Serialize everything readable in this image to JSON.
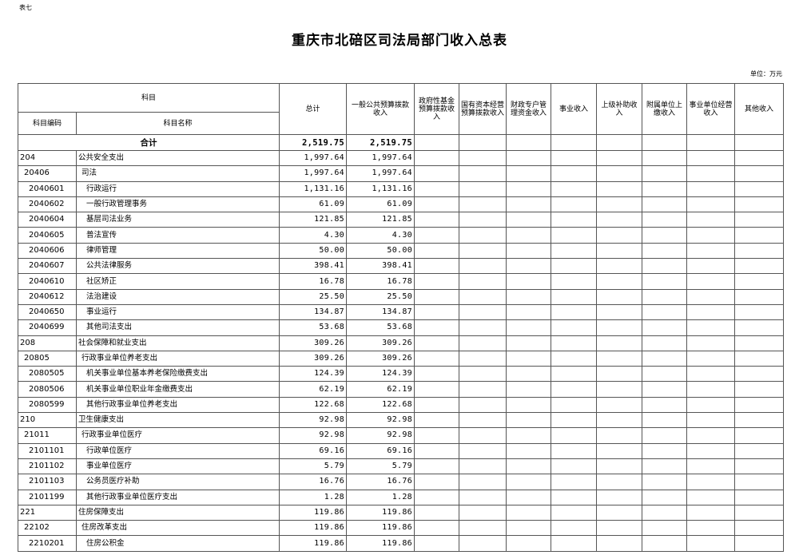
{
  "doc": {
    "tag": "表七",
    "title": "重庆市北碚区司法局部门收入总表",
    "unit": "单位：万元"
  },
  "header": {
    "subject": "科目",
    "code": "科目编码",
    "name": "科目名称",
    "columns": [
      "总计",
      "一般公共预算拨款收入",
      "政府性基金预算拨款收入",
      "国有资本经营预算拨款收入",
      "财政专户管理资金收入",
      "事业收入",
      "上级补助收入",
      "附属单位上缴收入",
      "事业单位经营收入",
      "其他收入"
    ]
  },
  "total": {
    "label": "合计",
    "total": "2,519.75",
    "general": "2,519.75"
  },
  "rows": [
    {
      "level": 0,
      "code": "204",
      "name": "公共安全支出",
      "total": "1,997.64",
      "general": "1,997.64"
    },
    {
      "level": 1,
      "code": "20406",
      "name": "司法",
      "total": "1,997.64",
      "general": "1,997.64"
    },
    {
      "level": 2,
      "code": "2040601",
      "name": "行政运行",
      "total": "1,131.16",
      "general": "1,131.16"
    },
    {
      "level": 2,
      "code": "2040602",
      "name": "一般行政管理事务",
      "total": "61.09",
      "general": "61.09"
    },
    {
      "level": 2,
      "code": "2040604",
      "name": "基层司法业务",
      "total": "121.85",
      "general": "121.85"
    },
    {
      "level": 2,
      "code": "2040605",
      "name": "普法宣传",
      "total": "4.30",
      "general": "4.30"
    },
    {
      "level": 2,
      "code": "2040606",
      "name": "律师管理",
      "total": "50.00",
      "general": "50.00"
    },
    {
      "level": 2,
      "code": "2040607",
      "name": "公共法律服务",
      "total": "398.41",
      "general": "398.41"
    },
    {
      "level": 2,
      "code": "2040610",
      "name": "社区矫正",
      "total": "16.78",
      "general": "16.78"
    },
    {
      "level": 2,
      "code": "2040612",
      "name": "法治建设",
      "total": "25.50",
      "general": "25.50"
    },
    {
      "level": 2,
      "code": "2040650",
      "name": "事业运行",
      "total": "134.87",
      "general": "134.87"
    },
    {
      "level": 2,
      "code": "2040699",
      "name": "其他司法支出",
      "total": "53.68",
      "general": "53.68"
    },
    {
      "level": 0,
      "code": "208",
      "name": "社会保障和就业支出",
      "total": "309.26",
      "general": "309.26"
    },
    {
      "level": 1,
      "code": "20805",
      "name": "行政事业单位养老支出",
      "total": "309.26",
      "general": "309.26"
    },
    {
      "level": 2,
      "code": "2080505",
      "name": "机关事业单位基本养老保险缴费支出",
      "total": "124.39",
      "general": "124.39"
    },
    {
      "level": 2,
      "code": "2080506",
      "name": "机关事业单位职业年金缴费支出",
      "total": "62.19",
      "general": "62.19"
    },
    {
      "level": 2,
      "code": "2080599",
      "name": "其他行政事业单位养老支出",
      "total": "122.68",
      "general": "122.68"
    },
    {
      "level": 0,
      "code": "210",
      "name": "卫生健康支出",
      "total": "92.98",
      "general": "92.98"
    },
    {
      "level": 1,
      "code": "21011",
      "name": "行政事业单位医疗",
      "total": "92.98",
      "general": "92.98"
    },
    {
      "level": 2,
      "code": "2101101",
      "name": "行政单位医疗",
      "total": "69.16",
      "general": "69.16"
    },
    {
      "level": 2,
      "code": "2101102",
      "name": "事业单位医疗",
      "total": "5.79",
      "general": "5.79"
    },
    {
      "level": 2,
      "code": "2101103",
      "name": "公务员医疗补助",
      "total": "16.76",
      "general": "16.76"
    },
    {
      "level": 2,
      "code": "2101199",
      "name": "其他行政事业单位医疗支出",
      "total": "1.28",
      "general": "1.28"
    },
    {
      "level": 0,
      "code": "221",
      "name": "住房保障支出",
      "total": "119.86",
      "general": "119.86"
    },
    {
      "level": 1,
      "code": "22102",
      "name": "住房改革支出",
      "total": "119.86",
      "general": "119.86"
    },
    {
      "level": 2,
      "code": "2210201",
      "name": "住房公积金",
      "total": "119.86",
      "general": "119.86"
    }
  ]
}
